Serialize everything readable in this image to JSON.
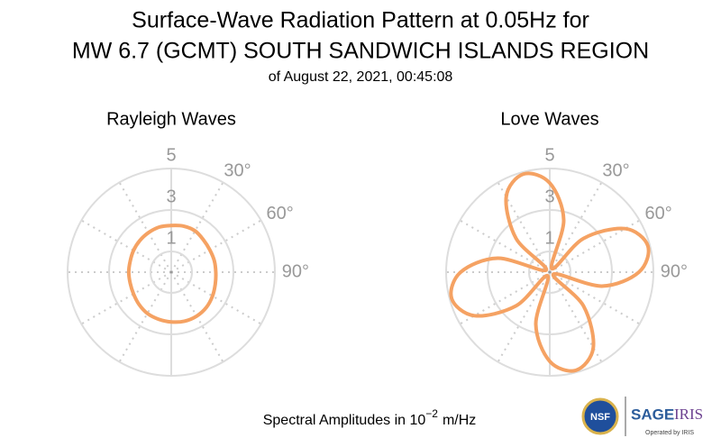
{
  "header": {
    "title": [
      "Surface-Wave Radiation Pattern at 0.05Hz for",
      "MW 6.7 (GCMT) SOUTH SANDWICH ISLANDS REGION"
    ],
    "subtitle": "of August 22, 2021, 00:45:08"
  },
  "chart_data": [
    {
      "type": "polar",
      "title": "Rayleigh Waves",
      "rlim": [
        0,
        5
      ],
      "rticks": [
        1,
        3,
        5
      ],
      "thetaticks": [
        {
          "value": 30,
          "label": "30°"
        },
        {
          "value": 60,
          "label": "60°"
        },
        {
          "value": 90,
          "label": "90°"
        }
      ],
      "thetagrid": 30,
      "theta": [
        0,
        15,
        30,
        45,
        60,
        75,
        90,
        105,
        120,
        135,
        150,
        165,
        180,
        195,
        210,
        225,
        240,
        255,
        270,
        285,
        300,
        315,
        330,
        345
      ],
      "values": [
        2.25,
        2.3,
        2.3,
        2.2,
        2.15,
        2.15,
        2.15,
        2.2,
        2.3,
        2.4,
        2.45,
        2.45,
        2.4,
        2.35,
        2.3,
        2.2,
        2.1,
        2.05,
        2.05,
        2.05,
        2.1,
        2.15,
        2.2,
        2.25
      ],
      "color": "#f5a263"
    },
    {
      "type": "polar",
      "title": "Love Waves",
      "rlim": [
        0,
        5
      ],
      "rticks": [
        1,
        3,
        5
      ],
      "thetaticks": [
        {
          "value": 30,
          "label": "30°"
        },
        {
          "value": 60,
          "label": "60°"
        },
        {
          "value": 90,
          "label": "90°"
        }
      ],
      "thetagrid": 30,
      "theta": [
        0,
        15,
        30,
        45,
        60,
        75,
        90,
        105,
        120,
        135,
        150,
        165,
        180,
        195,
        210,
        225,
        240,
        255,
        270,
        285,
        300,
        315,
        330,
        345
      ],
      "values": [
        4.3,
        2.6,
        0.2,
        2.3,
        4.2,
        4.9,
        4.3,
        2.6,
        0.2,
        2.3,
        4.2,
        4.9,
        4.3,
        2.6,
        0.2,
        2.3,
        4.2,
        4.9,
        4.3,
        2.6,
        0.2,
        2.3,
        4.2,
        4.9
      ],
      "color": "#f5a263"
    }
  ],
  "footer": {
    "text": "Spectral Amplitudes in 10",
    "exponent": "−2",
    "unit": "m/Hz"
  },
  "logos": {
    "nsf": "NSF",
    "sage": "SAGE",
    "iris": "IRIS",
    "operated": "Operated by IRIS"
  }
}
